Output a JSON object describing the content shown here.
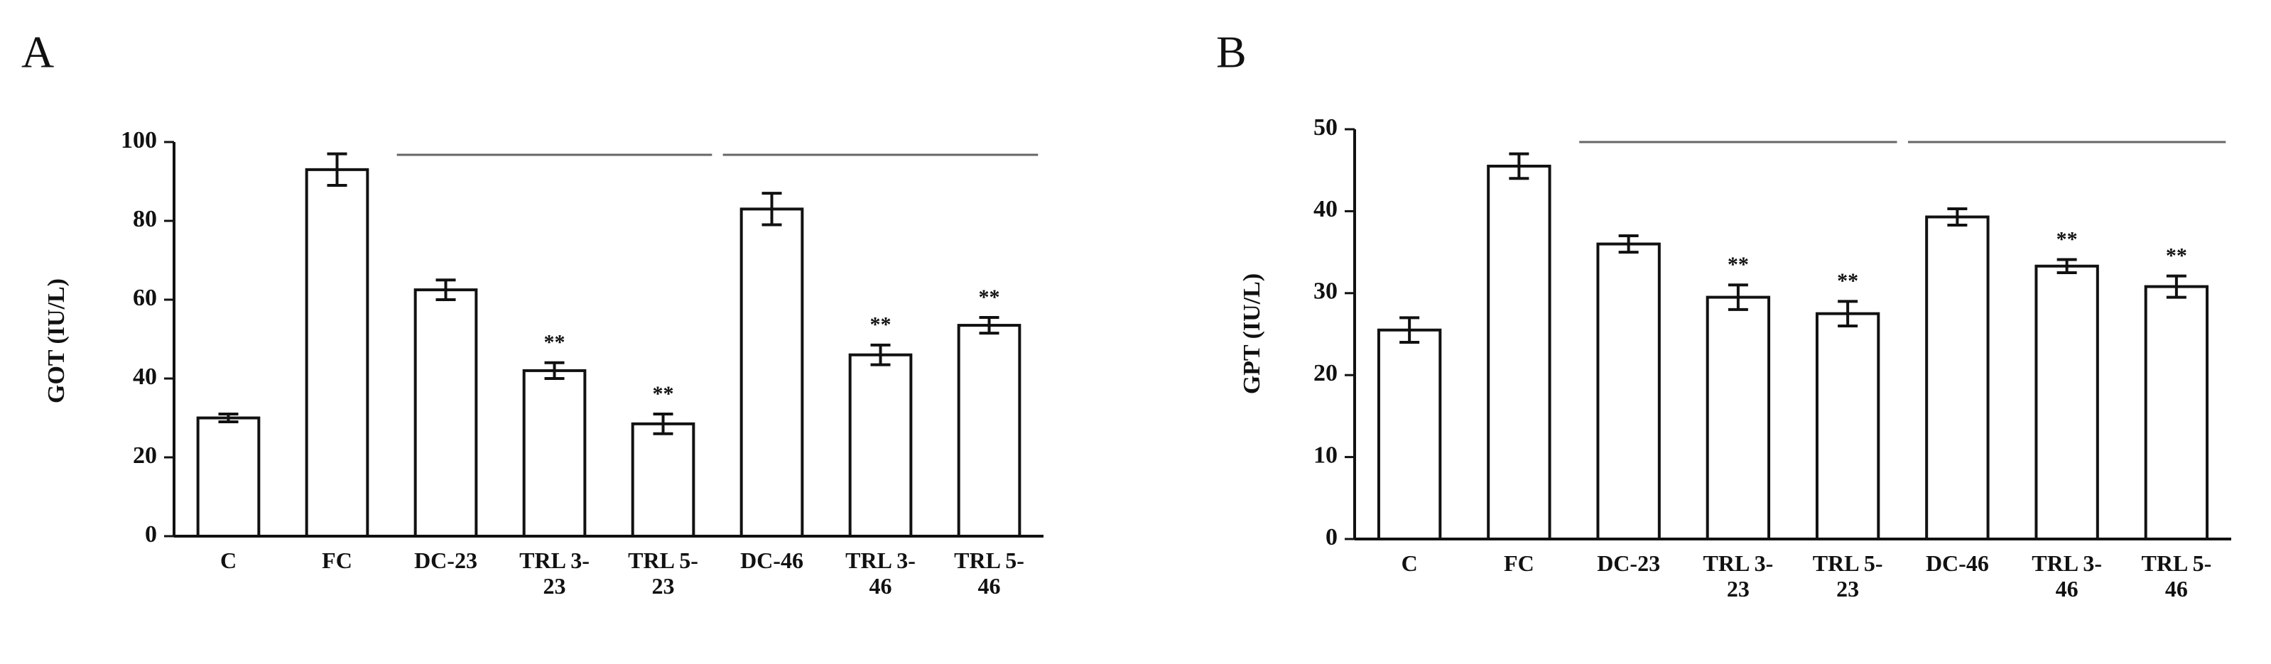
{
  "chart_data": [
    {
      "type": "bar",
      "label": "A",
      "y_label": "GOT (IU/L)",
      "categories": [
        "C",
        "FC",
        "DC-23",
        "TRL 3-23",
        "TRL 5-23",
        "DC-46",
        "TRL 3-46",
        "TRL 5-46"
      ],
      "values": [
        30,
        93,
        62.5,
        42,
        28.5,
        83,
        46,
        53.5
      ],
      "errors": [
        1,
        4,
        2.5,
        2,
        2.5,
        4,
        2.5,
        2
      ],
      "significance": [
        null,
        null,
        null,
        "**",
        "**",
        null,
        "**",
        "**"
      ],
      "color": "#ffffff",
      "ylim": [
        0,
        100
      ],
      "yticks": [
        0,
        20,
        40,
        60,
        80,
        100
      ]
    },
    {
      "type": "bar",
      "label": "B",
      "y_label": "GPT (IU/L)",
      "categories": [
        "C",
        "FC",
        "DC-23",
        "TRL 3-23",
        "TRL 5-23",
        "DC-46",
        "TRL 3-46",
        "TRL 5-46"
      ],
      "values": [
        25.5,
        45.5,
        36,
        29.5,
        27.5,
        39.3,
        33.3,
        30.8
      ],
      "errors": [
        1.5,
        1.5,
        1,
        1.5,
        1.5,
        1,
        0.8,
        1.3
      ],
      "significance": [
        null,
        null,
        null,
        "**",
        "**",
        null,
        "**",
        "**"
      ],
      "color": "#ffffff",
      "ylim": [
        0,
        50
      ],
      "yticks": [
        0,
        10,
        20,
        30,
        40,
        50
      ]
    }
  ]
}
